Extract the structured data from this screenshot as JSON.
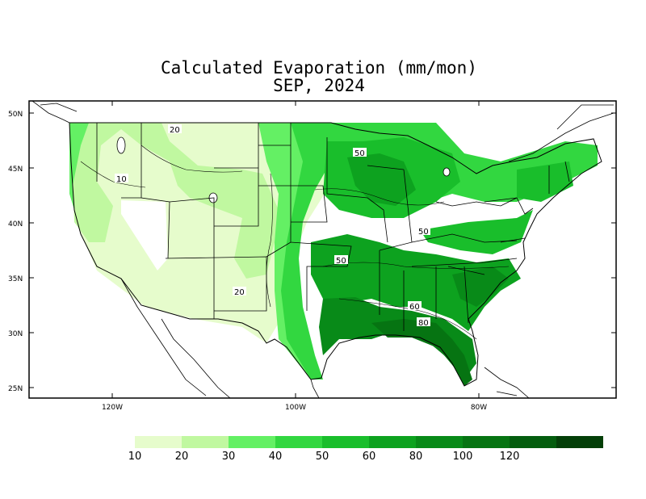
{
  "title": "Calculated Evaporation (mm/mon)",
  "subtitle": "SEP, 2024",
  "axes": {
    "lat_labels": [
      "50N",
      "45N",
      "40N",
      "35N",
      "30N",
      "25N"
    ],
    "lon_labels": [
      "120W",
      "100W",
      "80W"
    ]
  },
  "contour_labels": [
    "20",
    "10",
    "50",
    "50",
    "50",
    "20",
    "60",
    "80"
  ],
  "colorbar": {
    "ticks": [
      "10",
      "20",
      "30",
      "40",
      "50",
      "60",
      "80",
      "100",
      "120"
    ],
    "colors": [
      "#e6fccc",
      "#c0f8a0",
      "#64f064",
      "#32d740",
      "#19be2b",
      "#0da21f",
      "#088a18",
      "#067412",
      "#045d0e",
      "#033f08"
    ]
  },
  "palette": {
    "e0": "#e6fccc",
    "e10": "#c0f8a0",
    "e20": "#64f064",
    "e30": "#32d740",
    "e40": "#19be2b",
    "e50": "#0da21f",
    "e60": "#088a18",
    "e80": "#067412"
  }
}
